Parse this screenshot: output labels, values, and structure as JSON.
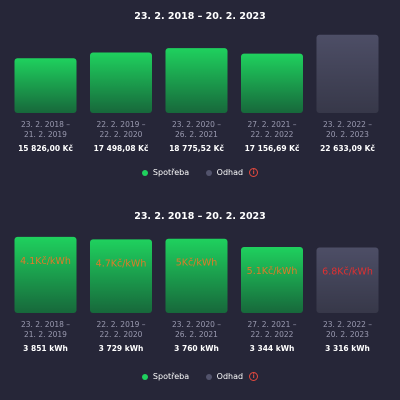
{
  "colors": {
    "background": "#262638",
    "consumption": "#1fd15e",
    "estimate": "#52536c",
    "label": "#9a9ab0",
    "rate_text": "#e07a28",
    "info": "#e0483e"
  },
  "legend": {
    "consumption_label": "Spotřeba",
    "estimate_label": "Odhad",
    "info_icon": "info-icon"
  },
  "chart_data": [
    {
      "type": "bar",
      "title": "23. 2. 2018 – 20. 2. 2023",
      "categories": [
        [
          "23. 2. 2018 –",
          "21. 2. 2019"
        ],
        [
          "22. 2. 2019 –",
          "22. 2. 2020"
        ],
        [
          "23. 2. 2020 –",
          "26. 2. 2021"
        ],
        [
          "27. 2. 2021 –",
          "22. 2. 2022"
        ],
        [
          "23. 2. 2022 –",
          "20. 2. 2023"
        ]
      ],
      "values": [
        15826.0,
        17498.08,
        18775.52,
        17156.69,
        22633.09
      ],
      "value_labels": [
        "15 826,00 Kč",
        "17 498,08 Kč",
        "18 775,52 Kč",
        "17 156,69 Kč",
        "22 633,09 Kč"
      ],
      "series_kind": [
        "consumption",
        "consumption",
        "consumption",
        "consumption",
        "estimate"
      ],
      "ylim": [
        0,
        24000
      ],
      "grid": false,
      "legend_position": "bottom-center"
    },
    {
      "type": "bar",
      "title": "23. 2. 2018 – 20. 2. 2023",
      "categories": [
        [
          "23. 2. 2018 –",
          "21. 2. 2019"
        ],
        [
          "22. 2. 2019 –",
          "22. 2. 2020"
        ],
        [
          "23. 2. 2020 –",
          "26. 2. 2021"
        ],
        [
          "27. 2. 2021 –",
          "22. 2. 2022"
        ],
        [
          "23. 2. 2022 –",
          "20. 2. 2023"
        ]
      ],
      "values": [
        3851,
        3729,
        3760,
        3344,
        3316
      ],
      "value_labels": [
        "3 851 kWh",
        "3 729 kWh",
        "3 760 kWh",
        "3 344 kWh",
        "3 316 kWh"
      ],
      "rate_labels": [
        "4.1Kč/kWh",
        "4.7Kč/kWh",
        "5Kč/kWh",
        "5.1Kč/kWh",
        "6.8Kč/kWh"
      ],
      "series_kind": [
        "consumption",
        "consumption",
        "consumption",
        "consumption",
        "estimate"
      ],
      "ylim": [
        0,
        4050
      ],
      "grid": false,
      "legend_position": "bottom-center"
    }
  ]
}
